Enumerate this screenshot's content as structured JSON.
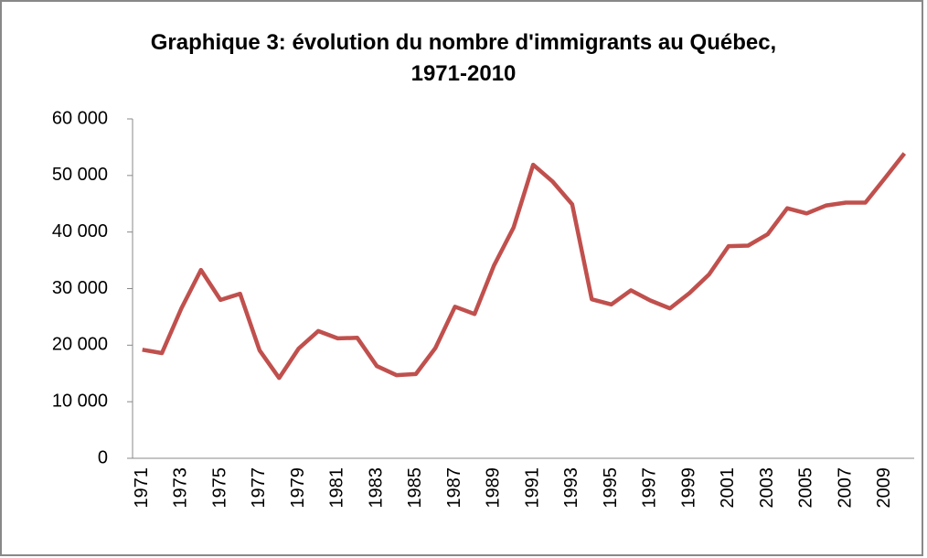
{
  "chart_data": {
    "type": "line",
    "title": "Graphique 3: évolution du nombre d'immigrants au Québec, 1971-2010",
    "categories": [
      "1971",
      null,
      "1973",
      null,
      "1975",
      null,
      "1977",
      null,
      "1979",
      null,
      "1981",
      null,
      "1983",
      null,
      "1985",
      null,
      "1987",
      null,
      "1989",
      null,
      "1991",
      null,
      "1993",
      null,
      "1995",
      null,
      "1997",
      null,
      "1999",
      null,
      "2001",
      null,
      "2003",
      null,
      "2005",
      null,
      "2007",
      null,
      "2009",
      null
    ],
    "values": [
      19200,
      18600,
      26500,
      33300,
      28000,
      29100,
      19100,
      14200,
      19400,
      22500,
      21200,
      21300,
      16300,
      14700,
      14900,
      19500,
      26800,
      25500,
      34100,
      40800,
      51900,
      48900,
      44900,
      28100,
      27200,
      29700,
      27900,
      26500,
      29200,
      32500,
      37500,
      37600,
      39600,
      44200,
      43300,
      44700,
      45200,
      45200,
      49500,
      53900
    ],
    "color": "#c0504d",
    "ylim": [
      0,
      60000
    ],
    "yticks": [
      0,
      {
        "value": 10000,
        "label": "10 000"
      },
      {
        "value": 20000,
        "label": "20 000"
      },
      {
        "value": 30000,
        "label": "30 000"
      },
      {
        "value": 40000,
        "label": "40 000"
      },
      {
        "value": 50000,
        "label": "50 000"
      },
      {
        "value": 60000,
        "label": "60 000"
      }
    ],
    "grid": false
  }
}
